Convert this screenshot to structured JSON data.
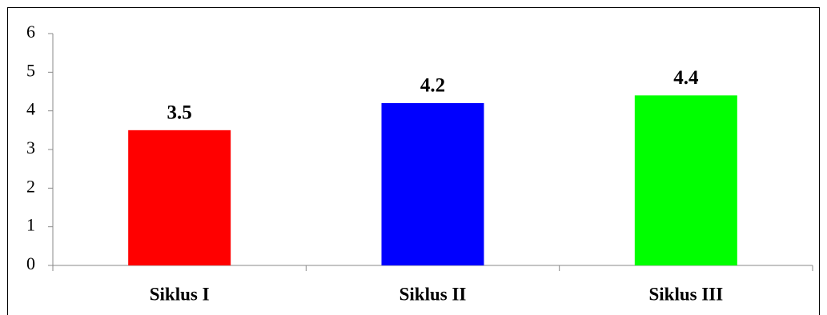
{
  "chart_data": {
    "type": "bar",
    "categories": [
      "Siklus I",
      "Siklus II",
      "Siklus III"
    ],
    "values": [
      3.5,
      4.2,
      4.4
    ],
    "colors": [
      "#ff0000",
      "#0000ff",
      "#00ff00"
    ],
    "ylim": [
      0,
      6
    ],
    "yticks": [
      0,
      1,
      2,
      3,
      4,
      5,
      6
    ],
    "grid": false
  }
}
